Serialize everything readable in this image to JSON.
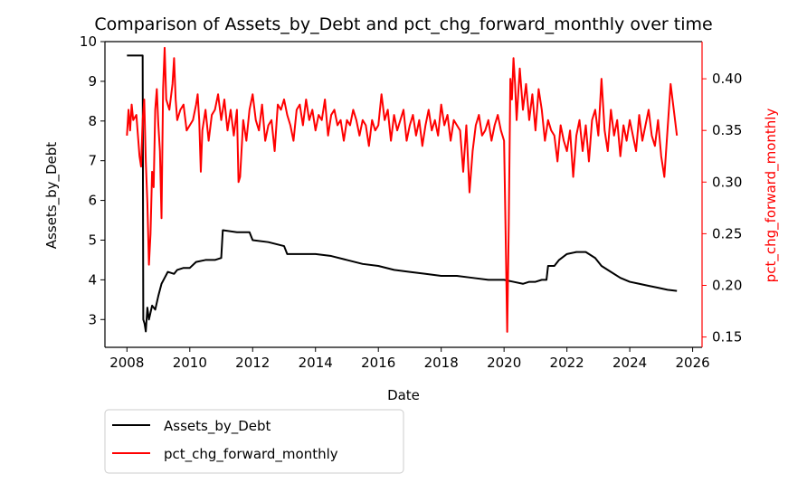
{
  "chart_data": {
    "type": "line",
    "title": "Comparison of Assets_by_Debt and pct_chg_forward_monthly over time",
    "xlabel": "Date",
    "ylabel_left": "Assets_by_Debt",
    "ylabel_right": "pct_chg_forward_monthly",
    "x_range": [
      2007.3,
      2026.3
    ],
    "ylim_left": [
      2.3,
      10.0
    ],
    "ylim_right": [
      0.14,
      0.436
    ],
    "x_ticks": [
      "2008",
      "2010",
      "2012",
      "2014",
      "2016",
      "2018",
      "2020",
      "2022",
      "2024",
      "2026"
    ],
    "y_left_ticks": [
      "3",
      "4",
      "5",
      "6",
      "7",
      "8",
      "9",
      "10"
    ],
    "y_right_ticks": [
      "0.15",
      "0.20",
      "0.25",
      "0.30",
      "0.35",
      "0.40"
    ],
    "grid": false,
    "legend_position": "below-left",
    "colors": {
      "left_series": "#000000",
      "right_series": "#ff0000"
    },
    "series": [
      {
        "name": "Assets_by_Debt",
        "axis": "left",
        "color": "#000000",
        "points": [
          [
            2008.0,
            9.65
          ],
          [
            2008.5,
            9.65
          ],
          [
            2008.52,
            3.0
          ],
          [
            2008.56,
            2.9
          ],
          [
            2008.6,
            2.7
          ],
          [
            2008.65,
            3.3
          ],
          [
            2008.7,
            3.0
          ],
          [
            2008.8,
            3.35
          ],
          [
            2008.9,
            3.25
          ],
          [
            2009.0,
            3.6
          ],
          [
            2009.1,
            3.9
          ],
          [
            2009.2,
            4.05
          ],
          [
            2009.3,
            4.2
          ],
          [
            2009.5,
            4.15
          ],
          [
            2009.6,
            4.25
          ],
          [
            2009.8,
            4.3
          ],
          [
            2010.0,
            4.3
          ],
          [
            2010.2,
            4.45
          ],
          [
            2010.5,
            4.5
          ],
          [
            2010.8,
            4.5
          ],
          [
            2011.0,
            4.55
          ],
          [
            2011.05,
            5.25
          ],
          [
            2011.5,
            5.2
          ],
          [
            2011.9,
            5.2
          ],
          [
            2012.0,
            5.0
          ],
          [
            2012.5,
            4.95
          ],
          [
            2013.0,
            4.85
          ],
          [
            2013.1,
            4.65
          ],
          [
            2014.0,
            4.65
          ],
          [
            2014.5,
            4.6
          ],
          [
            2015.0,
            4.5
          ],
          [
            2015.5,
            4.4
          ],
          [
            2016.0,
            4.35
          ],
          [
            2016.5,
            4.25
          ],
          [
            2017.0,
            4.2
          ],
          [
            2017.5,
            4.15
          ],
          [
            2018.0,
            4.1
          ],
          [
            2018.5,
            4.1
          ],
          [
            2019.0,
            4.05
          ],
          [
            2019.5,
            4.0
          ],
          [
            2020.0,
            4.0
          ],
          [
            2020.3,
            3.95
          ],
          [
            2020.6,
            3.9
          ],
          [
            2020.8,
            3.95
          ],
          [
            2021.0,
            3.95
          ],
          [
            2021.2,
            4.0
          ],
          [
            2021.35,
            4.0
          ],
          [
            2021.4,
            4.35
          ],
          [
            2021.6,
            4.35
          ],
          [
            2021.75,
            4.5
          ],
          [
            2022.0,
            4.65
          ],
          [
            2022.3,
            4.7
          ],
          [
            2022.6,
            4.7
          ],
          [
            2022.9,
            4.55
          ],
          [
            2023.1,
            4.35
          ],
          [
            2023.4,
            4.2
          ],
          [
            2023.7,
            4.05
          ],
          [
            2024.0,
            3.95
          ],
          [
            2024.3,
            3.9
          ],
          [
            2024.6,
            3.85
          ],
          [
            2024.9,
            3.8
          ],
          [
            2025.2,
            3.75
          ],
          [
            2025.5,
            3.72
          ]
        ]
      },
      {
        "name": "pct_chg_forward_monthly",
        "axis": "right",
        "color": "#ff0000",
        "points": [
          [
            2008.0,
            0.345
          ],
          [
            2008.05,
            0.37
          ],
          [
            2008.1,
            0.35
          ],
          [
            2008.15,
            0.375
          ],
          [
            2008.2,
            0.36
          ],
          [
            2008.3,
            0.365
          ],
          [
            2008.35,
            0.345
          ],
          [
            2008.4,
            0.325
          ],
          [
            2008.45,
            0.315
          ],
          [
            2008.5,
            0.36
          ],
          [
            2008.55,
            0.38
          ],
          [
            2008.6,
            0.32
          ],
          [
            2008.65,
            0.28
          ],
          [
            2008.7,
            0.22
          ],
          [
            2008.75,
            0.25
          ],
          [
            2008.8,
            0.31
          ],
          [
            2008.85,
            0.295
          ],
          [
            2008.9,
            0.37
          ],
          [
            2008.95,
            0.39
          ],
          [
            2009.0,
            0.355
          ],
          [
            2009.05,
            0.33
          ],
          [
            2009.1,
            0.265
          ],
          [
            2009.15,
            0.39
          ],
          [
            2009.2,
            0.43
          ],
          [
            2009.25,
            0.38
          ],
          [
            2009.35,
            0.37
          ],
          [
            2009.45,
            0.395
          ],
          [
            2009.5,
            0.42
          ],
          [
            2009.55,
            0.38
          ],
          [
            2009.6,
            0.36
          ],
          [
            2009.7,
            0.37
          ],
          [
            2009.8,
            0.375
          ],
          [
            2009.9,
            0.35
          ],
          [
            2010.0,
            0.355
          ],
          [
            2010.1,
            0.36
          ],
          [
            2010.2,
            0.375
          ],
          [
            2010.25,
            0.385
          ],
          [
            2010.3,
            0.36
          ],
          [
            2010.35,
            0.31
          ],
          [
            2010.4,
            0.35
          ],
          [
            2010.5,
            0.37
          ],
          [
            2010.6,
            0.34
          ],
          [
            2010.7,
            0.365
          ],
          [
            2010.8,
            0.37
          ],
          [
            2010.9,
            0.385
          ],
          [
            2011.0,
            0.36
          ],
          [
            2011.1,
            0.38
          ],
          [
            2011.2,
            0.35
          ],
          [
            2011.3,
            0.37
          ],
          [
            2011.4,
            0.345
          ],
          [
            2011.5,
            0.37
          ],
          [
            2011.55,
            0.3
          ],
          [
            2011.6,
            0.305
          ],
          [
            2011.7,
            0.36
          ],
          [
            2011.8,
            0.34
          ],
          [
            2011.9,
            0.37
          ],
          [
            2012.0,
            0.385
          ],
          [
            2012.1,
            0.36
          ],
          [
            2012.2,
            0.35
          ],
          [
            2012.3,
            0.375
          ],
          [
            2012.4,
            0.34
          ],
          [
            2012.5,
            0.355
          ],
          [
            2012.6,
            0.36
          ],
          [
            2012.7,
            0.33
          ],
          [
            2012.8,
            0.375
          ],
          [
            2012.9,
            0.37
          ],
          [
            2013.0,
            0.38
          ],
          [
            2013.1,
            0.365
          ],
          [
            2013.2,
            0.355
          ],
          [
            2013.3,
            0.34
          ],
          [
            2013.4,
            0.37
          ],
          [
            2013.5,
            0.375
          ],
          [
            2013.6,
            0.355
          ],
          [
            2013.7,
            0.38
          ],
          [
            2013.8,
            0.36
          ],
          [
            2013.9,
            0.37
          ],
          [
            2014.0,
            0.35
          ],
          [
            2014.1,
            0.365
          ],
          [
            2014.2,
            0.36
          ],
          [
            2014.3,
            0.38
          ],
          [
            2014.4,
            0.345
          ],
          [
            2014.5,
            0.365
          ],
          [
            2014.6,
            0.37
          ],
          [
            2014.7,
            0.355
          ],
          [
            2014.8,
            0.36
          ],
          [
            2014.9,
            0.34
          ],
          [
            2015.0,
            0.36
          ],
          [
            2015.1,
            0.355
          ],
          [
            2015.2,
            0.37
          ],
          [
            2015.3,
            0.36
          ],
          [
            2015.4,
            0.345
          ],
          [
            2015.5,
            0.36
          ],
          [
            2015.6,
            0.355
          ],
          [
            2015.7,
            0.335
          ],
          [
            2015.8,
            0.36
          ],
          [
            2015.9,
            0.35
          ],
          [
            2016.0,
            0.355
          ],
          [
            2016.1,
            0.385
          ],
          [
            2016.2,
            0.36
          ],
          [
            2016.3,
            0.37
          ],
          [
            2016.4,
            0.34
          ],
          [
            2016.5,
            0.365
          ],
          [
            2016.6,
            0.35
          ],
          [
            2016.7,
            0.36
          ],
          [
            2016.8,
            0.37
          ],
          [
            2016.9,
            0.34
          ],
          [
            2017.0,
            0.355
          ],
          [
            2017.1,
            0.365
          ],
          [
            2017.2,
            0.345
          ],
          [
            2017.3,
            0.36
          ],
          [
            2017.4,
            0.335
          ],
          [
            2017.5,
            0.355
          ],
          [
            2017.6,
            0.37
          ],
          [
            2017.7,
            0.35
          ],
          [
            2017.8,
            0.36
          ],
          [
            2017.9,
            0.345
          ],
          [
            2018.0,
            0.375
          ],
          [
            2018.1,
            0.355
          ],
          [
            2018.2,
            0.365
          ],
          [
            2018.3,
            0.34
          ],
          [
            2018.4,
            0.36
          ],
          [
            2018.5,
            0.355
          ],
          [
            2018.6,
            0.35
          ],
          [
            2018.7,
            0.31
          ],
          [
            2018.8,
            0.355
          ],
          [
            2018.9,
            0.29
          ],
          [
            2019.0,
            0.33
          ],
          [
            2019.1,
            0.355
          ],
          [
            2019.2,
            0.365
          ],
          [
            2019.3,
            0.345
          ],
          [
            2019.4,
            0.35
          ],
          [
            2019.5,
            0.36
          ],
          [
            2019.6,
            0.34
          ],
          [
            2019.7,
            0.355
          ],
          [
            2019.8,
            0.365
          ],
          [
            2019.9,
            0.35
          ],
          [
            2020.0,
            0.34
          ],
          [
            2020.05,
            0.25
          ],
          [
            2020.1,
            0.155
          ],
          [
            2020.15,
            0.26
          ],
          [
            2020.2,
            0.4
          ],
          [
            2020.25,
            0.38
          ],
          [
            2020.3,
            0.42
          ],
          [
            2020.35,
            0.395
          ],
          [
            2020.4,
            0.36
          ],
          [
            2020.5,
            0.41
          ],
          [
            2020.6,
            0.37
          ],
          [
            2020.7,
            0.395
          ],
          [
            2020.8,
            0.36
          ],
          [
            2020.9,
            0.385
          ],
          [
            2021.0,
            0.35
          ],
          [
            2021.1,
            0.39
          ],
          [
            2021.2,
            0.37
          ],
          [
            2021.3,
            0.34
          ],
          [
            2021.4,
            0.36
          ],
          [
            2021.5,
            0.35
          ],
          [
            2021.6,
            0.345
          ],
          [
            2021.7,
            0.32
          ],
          [
            2021.8,
            0.355
          ],
          [
            2021.9,
            0.34
          ],
          [
            2022.0,
            0.33
          ],
          [
            2022.1,
            0.35
          ],
          [
            2022.2,
            0.305
          ],
          [
            2022.3,
            0.345
          ],
          [
            2022.4,
            0.36
          ],
          [
            2022.5,
            0.33
          ],
          [
            2022.6,
            0.355
          ],
          [
            2022.7,
            0.32
          ],
          [
            2022.8,
            0.36
          ],
          [
            2022.9,
            0.37
          ],
          [
            2023.0,
            0.345
          ],
          [
            2023.1,
            0.4
          ],
          [
            2023.2,
            0.35
          ],
          [
            2023.3,
            0.33
          ],
          [
            2023.4,
            0.37
          ],
          [
            2023.5,
            0.345
          ],
          [
            2023.6,
            0.36
          ],
          [
            2023.7,
            0.325
          ],
          [
            2023.8,
            0.355
          ],
          [
            2023.9,
            0.34
          ],
          [
            2024.0,
            0.36
          ],
          [
            2024.1,
            0.345
          ],
          [
            2024.2,
            0.33
          ],
          [
            2024.3,
            0.365
          ],
          [
            2024.4,
            0.34
          ],
          [
            2024.5,
            0.355
          ],
          [
            2024.6,
            0.37
          ],
          [
            2024.7,
            0.345
          ],
          [
            2024.8,
            0.335
          ],
          [
            2024.9,
            0.36
          ],
          [
            2025.0,
            0.325
          ],
          [
            2025.1,
            0.305
          ],
          [
            2025.2,
            0.35
          ],
          [
            2025.3,
            0.395
          ],
          [
            2025.4,
            0.37
          ],
          [
            2025.5,
            0.345
          ]
        ]
      }
    ]
  }
}
